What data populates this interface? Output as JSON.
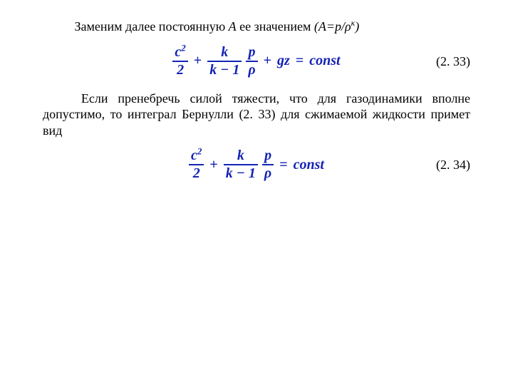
{
  "colors": {
    "text": "#000000",
    "formula": "#1423b5",
    "background": "#ffffff"
  },
  "typography": {
    "body_family": "Times New Roman",
    "body_size_pt": 14,
    "formula_size_pt": 15,
    "formula_weight": "bold",
    "formula_style": "italic"
  },
  "para1": {
    "lead": "Заменим далее постоянную ",
    "A": "A",
    "mid": " ее значением ",
    "expr_open": "(",
    "expr_lhs": "A=p/",
    "expr_rho": "ρ",
    "expr_sup": "κ",
    "expr_close": ")"
  },
  "eq1": {
    "type": "equation",
    "number": "(2. 33)",
    "frac1_num": "c",
    "frac1_num_sup": "2",
    "frac1_den": "2",
    "plus1": "+",
    "frac2_num": "k",
    "frac2_den": "k − 1",
    "frac3_num": "p",
    "frac3_den": "ρ",
    "plus2": "+",
    "term_gz": "gz",
    "eq": "=",
    "rhs": "const"
  },
  "para2": {
    "text": "Если пренебречь силой тяжести, что для газодинамики вполне допустимо, то интеграл Бернулли (2. 33) для сжимаемой жидкости примет вид"
  },
  "eq2": {
    "type": "equation",
    "number": "(2. 34)",
    "frac1_num": "c",
    "frac1_num_sup": "2",
    "frac1_den": "2",
    "plus1": "+",
    "frac2_num": "k",
    "frac2_den": "k − 1",
    "frac3_num": "p",
    "frac3_den": "ρ",
    "eq": "=",
    "rhs": "const"
  }
}
